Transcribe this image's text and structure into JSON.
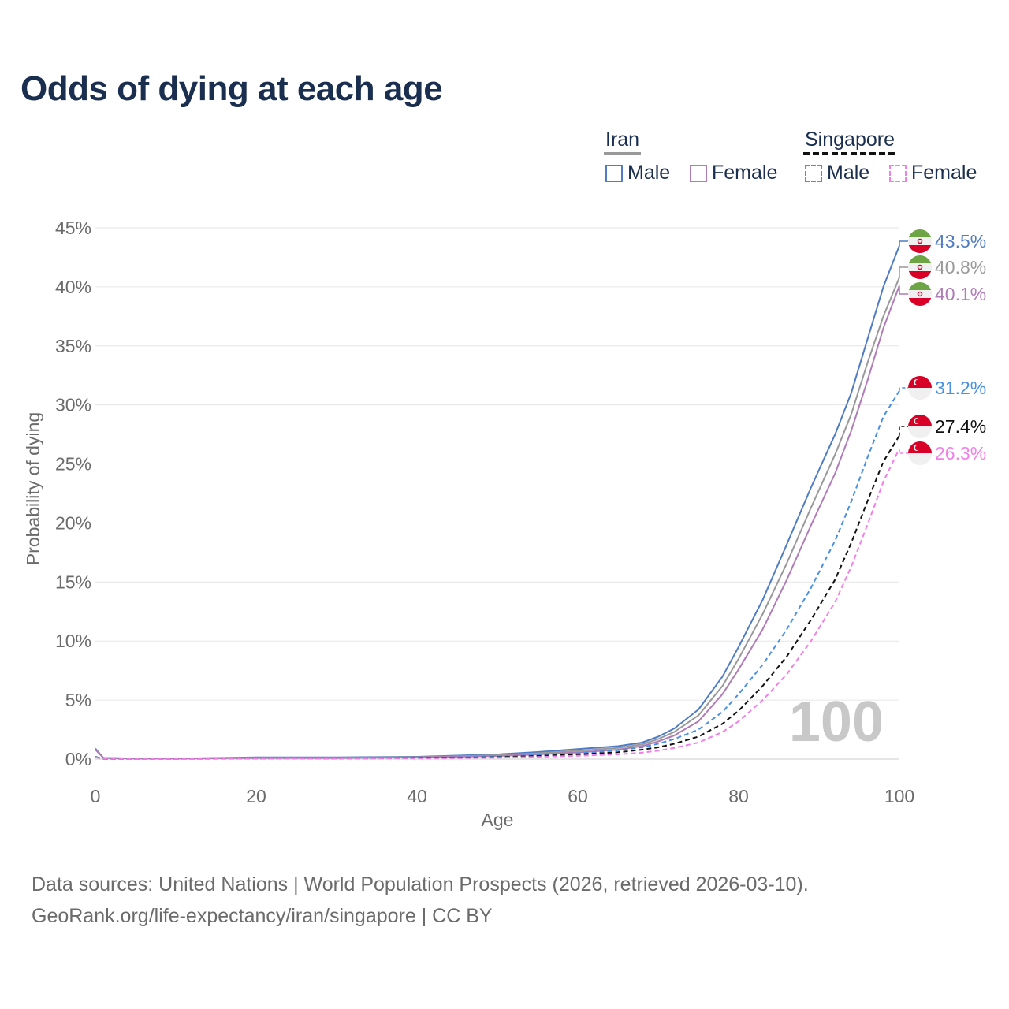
{
  "title": "Odds of dying at each age",
  "legend": {
    "groups": [
      {
        "name": "Iran",
        "line_color": "#999999",
        "dashed": false,
        "items": [
          {
            "label": "Male",
            "color": "#4f7cc4"
          },
          {
            "label": "Female",
            "color": "#b07cb8"
          }
        ]
      },
      {
        "name": "Singapore",
        "line_color": "#111111",
        "dashed": true,
        "items": [
          {
            "label": "Male",
            "color": "#4a90e2"
          },
          {
            "label": "Female",
            "color": "#f27fe9"
          }
        ]
      }
    ]
  },
  "watermark": "100",
  "footer": {
    "line1": "Data sources: United Nations | World Population Prospects (2026, retrieved 2026-03-10).",
    "line2": "GeoRank.org/life-expectancy/iran/singapore | CC BY"
  },
  "chart_data": {
    "type": "line",
    "title": "Odds of dying at each age",
    "xlabel": "Age",
    "ylabel": "Probability of dying",
    "xlim": [
      0,
      100
    ],
    "ylim": [
      0,
      45
    ],
    "x_ticks": [
      "0",
      "20",
      "40",
      "60",
      "80",
      "100"
    ],
    "x_tick_values": [
      0,
      20,
      40,
      60,
      80,
      100
    ],
    "y_ticks": [
      "0%",
      "5%",
      "10%",
      "15%",
      "20%",
      "25%",
      "30%",
      "35%",
      "40%",
      "45%"
    ],
    "y_tick_values": [
      0,
      5,
      10,
      15,
      20,
      25,
      30,
      35,
      40,
      45
    ],
    "x": [
      0,
      1,
      5,
      10,
      20,
      30,
      40,
      50,
      55,
      60,
      65,
      68,
      70,
      72,
      75,
      78,
      80,
      83,
      86,
      89,
      92,
      94,
      96,
      98,
      100
    ],
    "series": [
      {
        "name": "Iran Male",
        "color": "#4f7cc4",
        "dashed": false,
        "end_label": "43.5%",
        "flag": "iran",
        "values": [
          0.9,
          0.1,
          0.05,
          0.05,
          0.15,
          0.15,
          0.2,
          0.4,
          0.6,
          0.85,
          1.1,
          1.4,
          1.9,
          2.6,
          4.2,
          7.0,
          9.5,
          13.5,
          18.2,
          23.0,
          27.5,
          31.0,
          35.5,
          40.0,
          43.5
        ]
      },
      {
        "name": "Iran Total",
        "color": "#999999",
        "dashed": false,
        "end_label": "40.8%",
        "flag": "iran",
        "values": [
          0.85,
          0.1,
          0.05,
          0.05,
          0.12,
          0.12,
          0.17,
          0.33,
          0.5,
          0.7,
          0.95,
          1.25,
          1.7,
          2.3,
          3.7,
          6.2,
          8.5,
          12.3,
          16.6,
          21.3,
          25.8,
          29.2,
          33.5,
          37.5,
          40.8
        ]
      },
      {
        "name": "Iran Female",
        "color": "#b07cb8",
        "dashed": false,
        "end_label": "40.1%",
        "flag": "iran",
        "values": [
          0.8,
          0.1,
          0.04,
          0.04,
          0.1,
          0.1,
          0.14,
          0.27,
          0.4,
          0.57,
          0.8,
          1.1,
          1.5,
          2.0,
          3.2,
          5.5,
          7.6,
          11.0,
          15.2,
          19.8,
          24.2,
          27.8,
          32.0,
          36.5,
          40.1
        ]
      },
      {
        "name": "Singapore Male",
        "color": "#4a90e2",
        "dashed": true,
        "end_label": "31.2%",
        "flag": "singapore",
        "values": [
          0.2,
          0.02,
          0.02,
          0.02,
          0.05,
          0.06,
          0.1,
          0.2,
          0.35,
          0.5,
          0.75,
          1.0,
          1.3,
          1.7,
          2.5,
          4.0,
          5.5,
          8.0,
          11.0,
          14.5,
          18.5,
          21.8,
          25.5,
          29.0,
          31.2
        ]
      },
      {
        "name": "Singapore Total",
        "color": "#111111",
        "dashed": true,
        "end_label": "27.4%",
        "flag": "singapore",
        "values": [
          0.18,
          0.02,
          0.02,
          0.02,
          0.04,
          0.05,
          0.08,
          0.16,
          0.27,
          0.4,
          0.58,
          0.8,
          1.0,
          1.3,
          1.9,
          3.0,
          4.1,
          6.2,
          8.7,
          11.8,
          15.2,
          18.3,
          21.8,
          25.2,
          27.4
        ]
      },
      {
        "name": "Singapore Female",
        "color": "#f27fe9",
        "dashed": true,
        "end_label": "26.3%",
        "flag": "singapore",
        "values": [
          0.16,
          0.02,
          0.01,
          0.01,
          0.03,
          0.04,
          0.06,
          0.12,
          0.19,
          0.28,
          0.4,
          0.55,
          0.72,
          0.95,
          1.4,
          2.3,
          3.2,
          5.0,
          7.2,
          10.0,
          13.3,
          16.3,
          19.8,
          23.5,
          26.3
        ]
      }
    ]
  }
}
